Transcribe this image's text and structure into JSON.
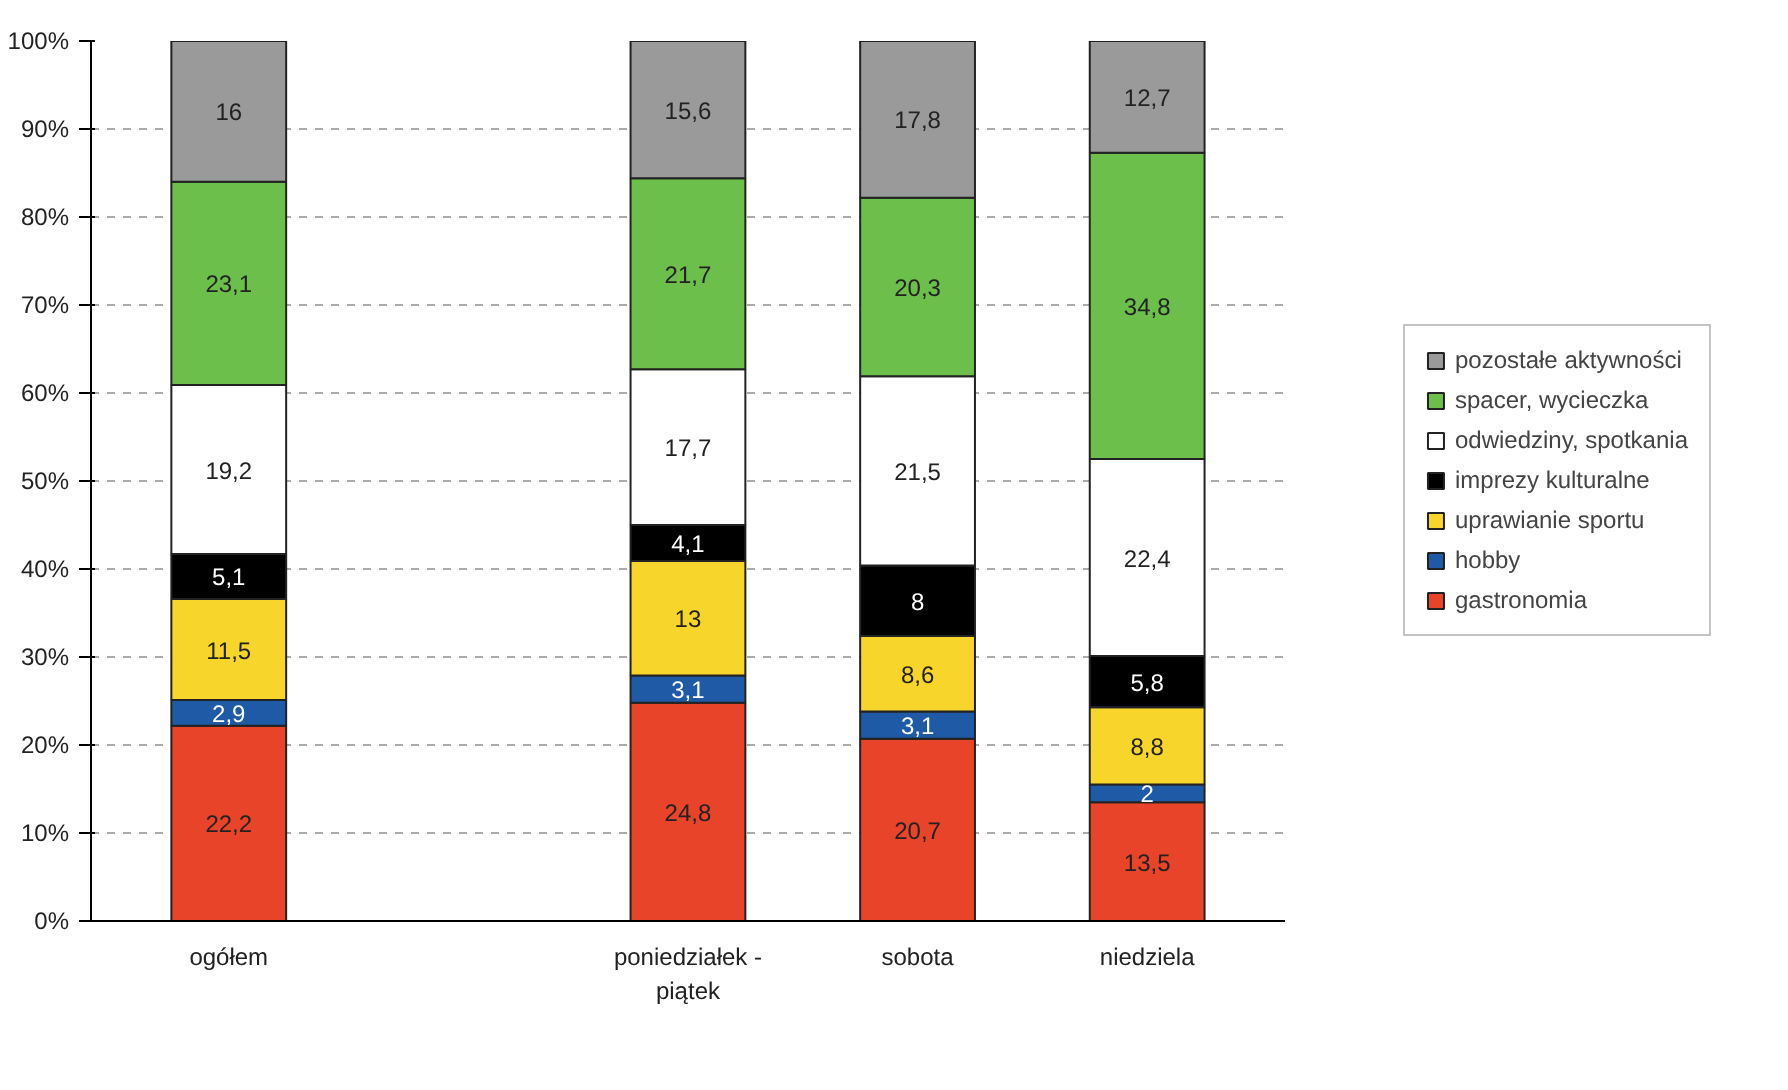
{
  "chart_data": {
    "type": "bar",
    "stacked": true,
    "categories": [
      "ogółem",
      null,
      "poniedziałek - piątek",
      "sobota",
      "niedziela"
    ],
    "series": [
      {
        "name": "gastronomia",
        "color": "#e8442a",
        "values": [
          22.2,
          null,
          24.8,
          20.7,
          13.5
        ],
        "value_labels": [
          "22,2",
          null,
          "24,8",
          "20,7",
          "13,5"
        ]
      },
      {
        "name": "hobby",
        "color": "#1f5aa6",
        "values": [
          2.9,
          null,
          3.1,
          3.1,
          2
        ],
        "value_labels": [
          "2,9",
          null,
          "3,1",
          "3,1",
          "2"
        ]
      },
      {
        "name": "uprawianie sportu",
        "color": "#f7d52a",
        "values": [
          11.5,
          null,
          13,
          8.6,
          8.8
        ],
        "value_labels": [
          "11,5",
          null,
          "13",
          "8,6",
          "8,8"
        ]
      },
      {
        "name": "imprezy kulturalne",
        "color": "#000000",
        "values": [
          5.1,
          null,
          4.1,
          8,
          5.8
        ],
        "value_labels": [
          "5,1",
          null,
          "4,1",
          "8",
          "5,8"
        ]
      },
      {
        "name": "odwiedziny, spotkania",
        "color": "#ffffff",
        "values": [
          19.2,
          null,
          17.7,
          21.5,
          22.4
        ],
        "value_labels": [
          "19,2",
          null,
          "17,7",
          "21,5",
          "22,4"
        ]
      },
      {
        "name": "spacer, wycieczka",
        "color": "#6cbf4a",
        "values": [
          23.1,
          null,
          21.7,
          20.3,
          34.8
        ],
        "value_labels": [
          "23,1",
          null,
          "21,7",
          "20,3",
          "34,8"
        ]
      },
      {
        "name": "pozostałe aktywności",
        "color": "#9a9a9a",
        "values": [
          16,
          null,
          15.6,
          17.8,
          12.7
        ],
        "value_labels": [
          "16",
          null,
          "15,6",
          "17,8",
          "12,7"
        ]
      }
    ],
    "ylim": [
      0,
      100
    ],
    "yticks": [
      {
        "value": 0,
        "label": "0%"
      },
      {
        "value": 10,
        "label": "10%"
      },
      {
        "value": 20,
        "label": "20%"
      },
      {
        "value": 30,
        "label": "30%"
      },
      {
        "value": 40,
        "label": "40%"
      },
      {
        "value": 50,
        "label": "50%"
      },
      {
        "value": 60,
        "label": "60%"
      },
      {
        "value": 70,
        "label": "70%"
      },
      {
        "value": 80,
        "label": "80%"
      },
      {
        "value": 90,
        "label": "90%"
      },
      {
        "value": 100,
        "label": "100%"
      }
    ],
    "grid": "y",
    "legend": "right"
  }
}
